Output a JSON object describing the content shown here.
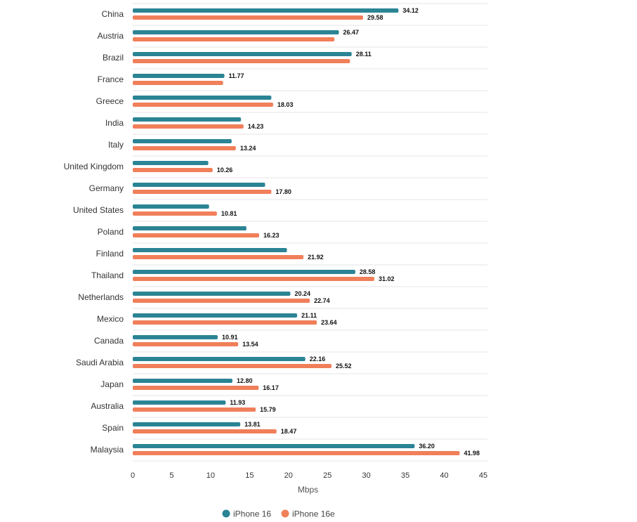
{
  "chart_data": {
    "type": "bar",
    "orientation": "horizontal",
    "categories": [
      "China",
      "Austria",
      "Brazil",
      "France",
      "Greece",
      "India",
      "Italy",
      "United Kingdom",
      "Germany",
      "United States",
      "Poland",
      "Finland",
      "Thailand",
      "Netherlands",
      "Mexico",
      "Canada",
      "Saudi Arabia",
      "Japan",
      "Australia",
      "Spain",
      "Malaysia"
    ],
    "series": [
      {
        "name": "iPhone 16",
        "color": "#2a8494",
        "values": [
          34.12,
          26.47,
          28.11,
          11.77,
          17.8,
          13.9,
          12.7,
          9.7,
          17.0,
          9.8,
          14.6,
          19.8,
          28.58,
          20.24,
          21.11,
          10.91,
          22.16,
          12.8,
          11.93,
          13.81,
          36.2
        ],
        "labels": [
          "34.12",
          "26.47",
          "28.11",
          "11.77",
          "",
          "",
          "",
          "",
          "",
          "",
          "",
          "",
          "28.58",
          "20.24",
          "21.11",
          "10.91",
          "22.16",
          "12.80",
          "11.93",
          "13.81",
          "36.20"
        ]
      },
      {
        "name": "iPhone 16e",
        "color": "#f07f5a",
        "values": [
          29.58,
          25.9,
          27.9,
          11.6,
          18.03,
          14.23,
          13.24,
          10.26,
          17.8,
          10.81,
          16.23,
          21.92,
          31.02,
          22.74,
          23.64,
          13.54,
          25.52,
          16.17,
          15.79,
          18.47,
          41.98
        ],
        "labels": [
          "29.58",
          "",
          "",
          "",
          "18.03",
          "14.23",
          "13.24",
          "10.26",
          "17.80",
          "10.81",
          "16.23",
          "21.92",
          "31.02",
          "22.74",
          "23.64",
          "13.54",
          "25.52",
          "16.17",
          "15.79",
          "18.47",
          "41.98"
        ]
      }
    ],
    "xlabel": "Mbps",
    "ylabel": "",
    "xlim": [
      0,
      45
    ],
    "xticks": [
      0,
      5,
      10,
      15,
      20,
      25,
      30,
      35,
      40,
      45
    ],
    "grid": "horizontal row separators",
    "legend_position": "bottom"
  }
}
